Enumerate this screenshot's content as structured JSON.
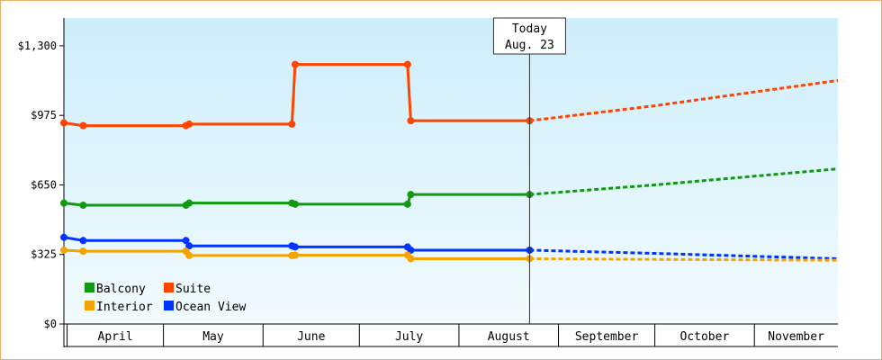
{
  "chart_data": {
    "type": "line",
    "title": "",
    "xlabel": "",
    "ylabel": "",
    "ylim": [
      0,
      1430
    ],
    "yticks": [
      {
        "value": 0,
        "label": "$0"
      },
      {
        "value": 325,
        "label": "$325"
      },
      {
        "value": 650,
        "label": "$650"
      },
      {
        "value": 975,
        "label": "$975"
      },
      {
        "value": 1300,
        "label": "$1,300"
      }
    ],
    "months": [
      "April",
      "May",
      "June",
      "July",
      "August",
      "September",
      "October",
      "November"
    ],
    "x_axis": {
      "start": "2024-03-31",
      "end": "2024-11-27",
      "month_starts": [
        "2024-04-01",
        "2024-05-01",
        "2024-06-01",
        "2024-07-01",
        "2024-08-01",
        "2024-09-01",
        "2024-10-01",
        "2024-11-01",
        "2024-12-01"
      ]
    },
    "today": {
      "label_line1": "Today",
      "label_line2": "Aug. 23",
      "date": "2024-08-23"
    },
    "legend": {
      "position": "bottom-left"
    },
    "grid": false,
    "colors": {
      "Balcony": "#119911",
      "Suite": "#ff4400",
      "Interior": "#f5a300",
      "Ocean View": "#0033ff",
      "background_top": "#cdeefa",
      "background_bottom": "#f2fbfe"
    },
    "series": [
      {
        "name": "Suite",
        "points": [
          {
            "date": "2024-03-31",
            "value": 940
          },
          {
            "date": "2024-04-06",
            "value": 927
          },
          {
            "date": "2024-05-08",
            "value": 927
          },
          {
            "date": "2024-05-09",
            "value": 934
          },
          {
            "date": "2024-06-10",
            "value": 934
          },
          {
            "date": "2024-06-11",
            "value": 1213
          },
          {
            "date": "2024-07-16",
            "value": 1213
          },
          {
            "date": "2024-07-17",
            "value": 950
          },
          {
            "date": "2024-08-23",
            "value": 950
          }
        ],
        "forecast": [
          {
            "date": "2024-08-23",
            "value": 950
          },
          {
            "date": "2024-10-01",
            "value": 1020
          },
          {
            "date": "2024-11-27",
            "value": 1138
          }
        ]
      },
      {
        "name": "Balcony",
        "points": [
          {
            "date": "2024-03-31",
            "value": 565
          },
          {
            "date": "2024-04-06",
            "value": 555
          },
          {
            "date": "2024-05-08",
            "value": 555
          },
          {
            "date": "2024-05-09",
            "value": 565
          },
          {
            "date": "2024-06-10",
            "value": 565
          },
          {
            "date": "2024-06-11",
            "value": 560
          },
          {
            "date": "2024-07-16",
            "value": 560
          },
          {
            "date": "2024-07-17",
            "value": 605
          },
          {
            "date": "2024-08-23",
            "value": 605
          }
        ],
        "forecast": [
          {
            "date": "2024-08-23",
            "value": 605
          },
          {
            "date": "2024-10-01",
            "value": 650
          },
          {
            "date": "2024-11-27",
            "value": 725
          }
        ]
      },
      {
        "name": "Ocean View",
        "points": [
          {
            "date": "2024-03-31",
            "value": 405
          },
          {
            "date": "2024-04-06",
            "value": 390
          },
          {
            "date": "2024-05-08",
            "value": 390
          },
          {
            "date": "2024-05-09",
            "value": 365
          },
          {
            "date": "2024-06-10",
            "value": 365
          },
          {
            "date": "2024-06-11",
            "value": 360
          },
          {
            "date": "2024-07-16",
            "value": 360
          },
          {
            "date": "2024-07-17",
            "value": 345
          },
          {
            "date": "2024-08-23",
            "value": 345
          }
        ],
        "forecast": [
          {
            "date": "2024-08-23",
            "value": 345
          },
          {
            "date": "2024-10-01",
            "value": 330
          },
          {
            "date": "2024-11-27",
            "value": 305
          }
        ]
      },
      {
        "name": "Interior",
        "points": [
          {
            "date": "2024-03-31",
            "value": 345
          },
          {
            "date": "2024-04-06",
            "value": 340
          },
          {
            "date": "2024-05-08",
            "value": 340
          },
          {
            "date": "2024-05-09",
            "value": 320
          },
          {
            "date": "2024-06-10",
            "value": 320
          },
          {
            "date": "2024-06-11",
            "value": 322
          },
          {
            "date": "2024-07-16",
            "value": 322
          },
          {
            "date": "2024-07-17",
            "value": 305
          },
          {
            "date": "2024-08-23",
            "value": 305
          }
        ],
        "forecast": [
          {
            "date": "2024-08-23",
            "value": 305
          },
          {
            "date": "2024-10-01",
            "value": 302
          },
          {
            "date": "2024-11-27",
            "value": 298
          }
        ]
      }
    ],
    "legend_order": [
      "Balcony",
      "Suite",
      "Interior",
      "Ocean View"
    ]
  }
}
